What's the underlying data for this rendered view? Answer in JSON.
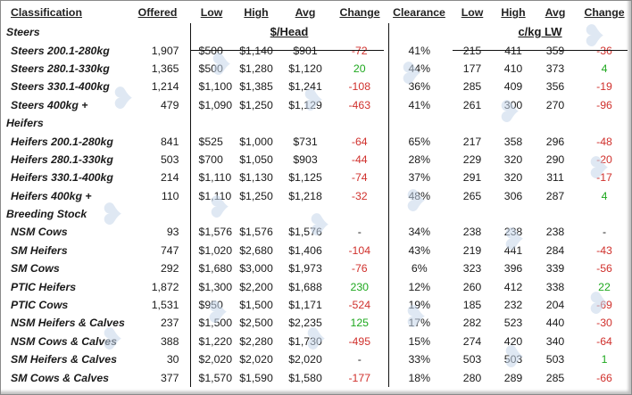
{
  "header": {
    "classification": "Classification",
    "offered": "Offered",
    "low": "Low",
    "high": "High",
    "avg": "Avg",
    "change": "Change",
    "clearance": "Clearance",
    "low2": "Low",
    "high2": "High",
    "avg2": "Avg",
    "change2": "Change"
  },
  "units": {
    "head": "$/Head",
    "lw": "c/kg LW"
  },
  "sections": {
    "steers": "Steers",
    "heifers": "Heifers",
    "breeding": "Breeding Stock"
  },
  "rows": [
    {
      "name": "Steers 200.1-280kg",
      "offered": "1,907",
      "low": "$500",
      "high": "$1,140",
      "avg": "$901",
      "change": "-72",
      "clearance": "41%",
      "lw_low": "215",
      "lw_high": "411",
      "lw_avg": "359",
      "lw_change": "-36"
    },
    {
      "name": "Steers 280.1-330kg",
      "offered": "1,365",
      "low": "$500",
      "high": "$1,280",
      "avg": "$1,120",
      "change": "20",
      "clearance": "44%",
      "lw_low": "177",
      "lw_high": "410",
      "lw_avg": "373",
      "lw_change": "4"
    },
    {
      "name": "Steers 330.1-400kg",
      "offered": "1,214",
      "low": "$1,100",
      "high": "$1,385",
      "avg": "$1,241",
      "change": "-108",
      "clearance": "36%",
      "lw_low": "285",
      "lw_high": "409",
      "lw_avg": "356",
      "lw_change": "-19"
    },
    {
      "name": "Steers 400kg +",
      "offered": "479",
      "low": "$1,090",
      "high": "$1,250",
      "avg": "$1,129",
      "change": "-463",
      "clearance": "41%",
      "lw_low": "261",
      "lw_high": "300",
      "lw_avg": "270",
      "lw_change": "-96"
    },
    {
      "name": "Heifers 200.1-280kg",
      "offered": "841",
      "low": "$525",
      "high": "$1,000",
      "avg": "$731",
      "change": "-64",
      "clearance": "65%",
      "lw_low": "217",
      "lw_high": "358",
      "lw_avg": "296",
      "lw_change": "-48"
    },
    {
      "name": "Heifers 280.1-330kg",
      "offered": "503",
      "low": "$700",
      "high": "$1,050",
      "avg": "$903",
      "change": "-44",
      "clearance": "28%",
      "lw_low": "229",
      "lw_high": "320",
      "lw_avg": "290",
      "lw_change": "-20"
    },
    {
      "name": "Heifers 330.1-400kg",
      "offered": "214",
      "low": "$1,110",
      "high": "$1,130",
      "avg": "$1,125",
      "change": "-74",
      "clearance": "37%",
      "lw_low": "291",
      "lw_high": "320",
      "lw_avg": "311",
      "lw_change": "-17"
    },
    {
      "name": "Heifers 400kg +",
      "offered": "110",
      "low": "$1,110",
      "high": "$1,250",
      "avg": "$1,218",
      "change": "-32",
      "clearance": "48%",
      "lw_low": "265",
      "lw_high": "306",
      "lw_avg": "287",
      "lw_change": "4"
    },
    {
      "name": "NSM Cows",
      "offered": "93",
      "low": "$1,576",
      "high": "$1,576",
      "avg": "$1,576",
      "change": "-",
      "clearance": "34%",
      "lw_low": "238",
      "lw_high": "238",
      "lw_avg": "238",
      "lw_change": "-"
    },
    {
      "name": "SM Heifers",
      "offered": "747",
      "low": "$1,020",
      "high": "$2,680",
      "avg": "$1,406",
      "change": "-104",
      "clearance": "43%",
      "lw_low": "219",
      "lw_high": "441",
      "lw_avg": "284",
      "lw_change": "-43"
    },
    {
      "name": "SM Cows",
      "offered": "292",
      "low": "$1,680",
      "high": "$3,000",
      "avg": "$1,973",
      "change": "-76",
      "clearance": "6%",
      "lw_low": "323",
      "lw_high": "396",
      "lw_avg": "339",
      "lw_change": "-56"
    },
    {
      "name": "PTIC Heifers",
      "offered": "1,872",
      "low": "$1,300",
      "high": "$2,200",
      "avg": "$1,688",
      "change": "230",
      "clearance": "12%",
      "lw_low": "260",
      "lw_high": "412",
      "lw_avg": "338",
      "lw_change": "22"
    },
    {
      "name": "PTIC Cows",
      "offered": "1,531",
      "low": "$950",
      "high": "$1,500",
      "avg": "$1,171",
      "change": "-524",
      "clearance": "19%",
      "lw_low": "185",
      "lw_high": "232",
      "lw_avg": "204",
      "lw_change": "-69"
    },
    {
      "name": "NSM Heifers & Calves",
      "offered": "237",
      "low": "$1,500",
      "high": "$2,500",
      "avg": "$2,235",
      "change": "125",
      "clearance": "17%",
      "lw_low": "282",
      "lw_high": "523",
      "lw_avg": "440",
      "lw_change": "-30"
    },
    {
      "name": "NSM Cows & Calves",
      "offered": "388",
      "low": "$1,220",
      "high": "$2,280",
      "avg": "$1,730",
      "change": "-495",
      "clearance": "15%",
      "lw_low": "274",
      "lw_high": "420",
      "lw_avg": "340",
      "lw_change": "-64"
    },
    {
      "name": "SM Heifers & Calves",
      "offered": "30",
      "low": "$2,020",
      "high": "$2,020",
      "avg": "$2,020",
      "change": "-",
      "clearance": "33%",
      "lw_low": "503",
      "lw_high": "503",
      "lw_avg": "503",
      "lw_change": "1"
    },
    {
      "name": "SM Cows & Calves",
      "offered": "377",
      "low": "$1,570",
      "high": "$1,590",
      "avg": "$1,580",
      "change": "-177",
      "clearance": "18%",
      "lw_low": "280",
      "lw_high": "289",
      "lw_avg": "285",
      "lw_change": "-66"
    }
  ],
  "colors": {
    "negative": "#d0312d",
    "positive": "#1ea81e",
    "neutral": "#1a1a1a",
    "watermark": "#c6d6ea"
  },
  "watermark_icon": "cow-logo-watermark"
}
